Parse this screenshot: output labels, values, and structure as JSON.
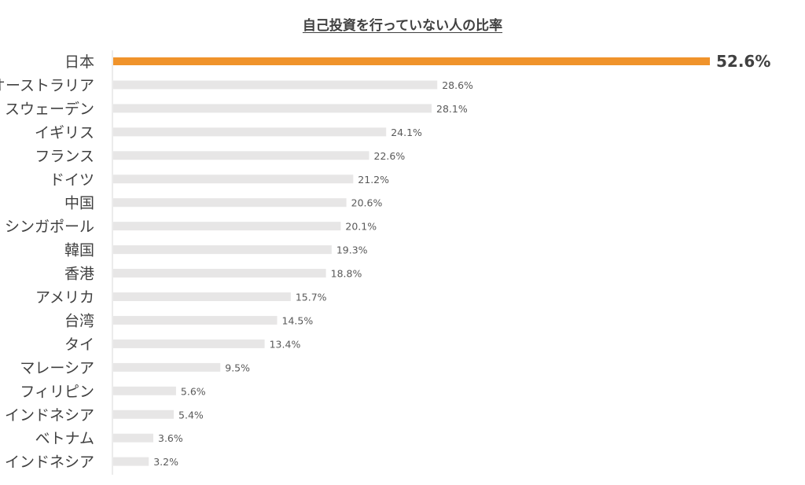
{
  "chart_data": {
    "type": "bar",
    "orientation": "horizontal",
    "title": "自己投資を行っていない人の比率",
    "xlabel": "",
    "ylabel": "",
    "xlim": [
      0,
      52.6
    ],
    "grid": false,
    "legend": "none",
    "categories": [
      "日本",
      "オーストラリア",
      "スウェーデン",
      "イギリス",
      "フランス",
      "ドイツ",
      "中国",
      "シンガポール",
      "韓国",
      "香港",
      "アメリカ",
      "台湾",
      "タイ",
      "マレーシア",
      "フィリピン",
      "インドネシア",
      "ベトナム",
      "インドネシア"
    ],
    "values": [
      52.6,
      28.6,
      28.1,
      24.1,
      22.6,
      21.2,
      20.6,
      20.1,
      19.3,
      18.8,
      15.7,
      14.5,
      13.4,
      9.5,
      5.6,
      5.4,
      3.6,
      3.2
    ],
    "value_labels": [
      "52.6%",
      "28.6%",
      "28.1%",
      "24.1%",
      "22.6%",
      "21.2%",
      "20.6%",
      "20.1%",
      "19.3%",
      "18.8%",
      "15.7%",
      "14.5%",
      "13.4%",
      "9.5%",
      "5.6%",
      "5.4%",
      "3.6%",
      "3.2%"
    ],
    "highlight_index": 0,
    "colors": {
      "highlight": "#F0932B",
      "bar": "#E7E6E6",
      "axis": "#D9D9D9",
      "title": "#404040"
    }
  }
}
